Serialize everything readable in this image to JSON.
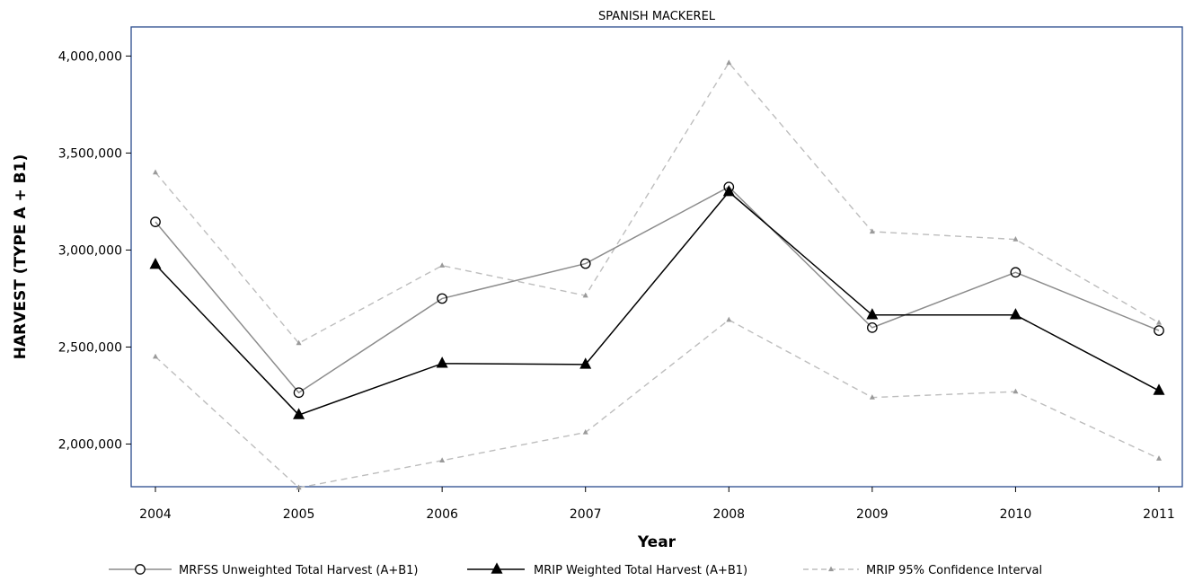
{
  "chart_data": {
    "type": "line",
    "title": "SPANISH MACKEREL",
    "xlabel": "Year",
    "ylabel": "HARVEST (TYPE A + B1)",
    "x": [
      "2004",
      "2005",
      "2006",
      "2007",
      "2008",
      "2009",
      "2010",
      "2011"
    ],
    "ylim": [
      1780000,
      4150000
    ],
    "yticks": [
      2000000,
      2500000,
      3000000,
      3500000,
      4000000
    ],
    "ytick_labels": [
      "2,000,000",
      "2,500,000",
      "3,000,000",
      "3,500,000",
      "4,000,000"
    ],
    "grid": false,
    "legend_position": "bottom",
    "series": [
      {
        "name": "MRFSS Unweighted Total Harvest (A+B1)",
        "color": "#8c8c8c",
        "marker": "open-circle",
        "line_style": "solid",
        "values": [
          3145000,
          2265000,
          2750000,
          2930000,
          3325000,
          2600000,
          2885000,
          2585000
        ]
      },
      {
        "name": "MRIP Weighted Total Harvest (A+B1)",
        "color": "#000000",
        "marker": "filled-triangle",
        "line_style": "solid",
        "values": [
          2925000,
          2150000,
          2415000,
          2410000,
          3300000,
          2665000,
          2665000,
          2275000
        ]
      },
      {
        "name": "MRIP 95% Confidence Interval",
        "color": "#bdbdbd",
        "marker": "small-triangle",
        "line_style": "dashed",
        "upper": [
          3400000,
          2520000,
          2920000,
          2765000,
          3965000,
          3095000,
          3055000,
          2625000
        ],
        "lower": [
          2450000,
          1775000,
          1915000,
          2060000,
          2640000,
          2240000,
          2270000,
          1925000
        ]
      }
    ]
  }
}
